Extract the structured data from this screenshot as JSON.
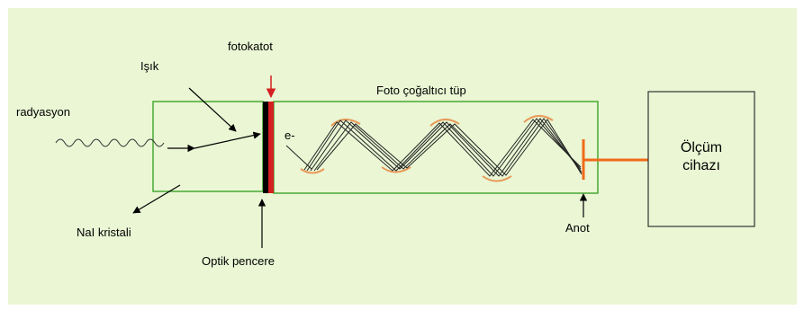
{
  "labels": {
    "radiation": "radyasyon",
    "light": "Işık",
    "photocathode": "fotokatot",
    "tube": "Foto çoğaltıcı tüp",
    "electron": "e-",
    "crystal": "NaI kristali",
    "window": "Optik pencere",
    "anode": "Anot",
    "device_line1": "Ölçüm",
    "device_line2": "cihazı"
  },
  "colors": {
    "background": "#eaf6d4",
    "frame_green": "#46a832",
    "photocathode_red": "#d42020",
    "anode_orange": "#f06a1a",
    "dynode_orange": "#e79a5a"
  }
}
